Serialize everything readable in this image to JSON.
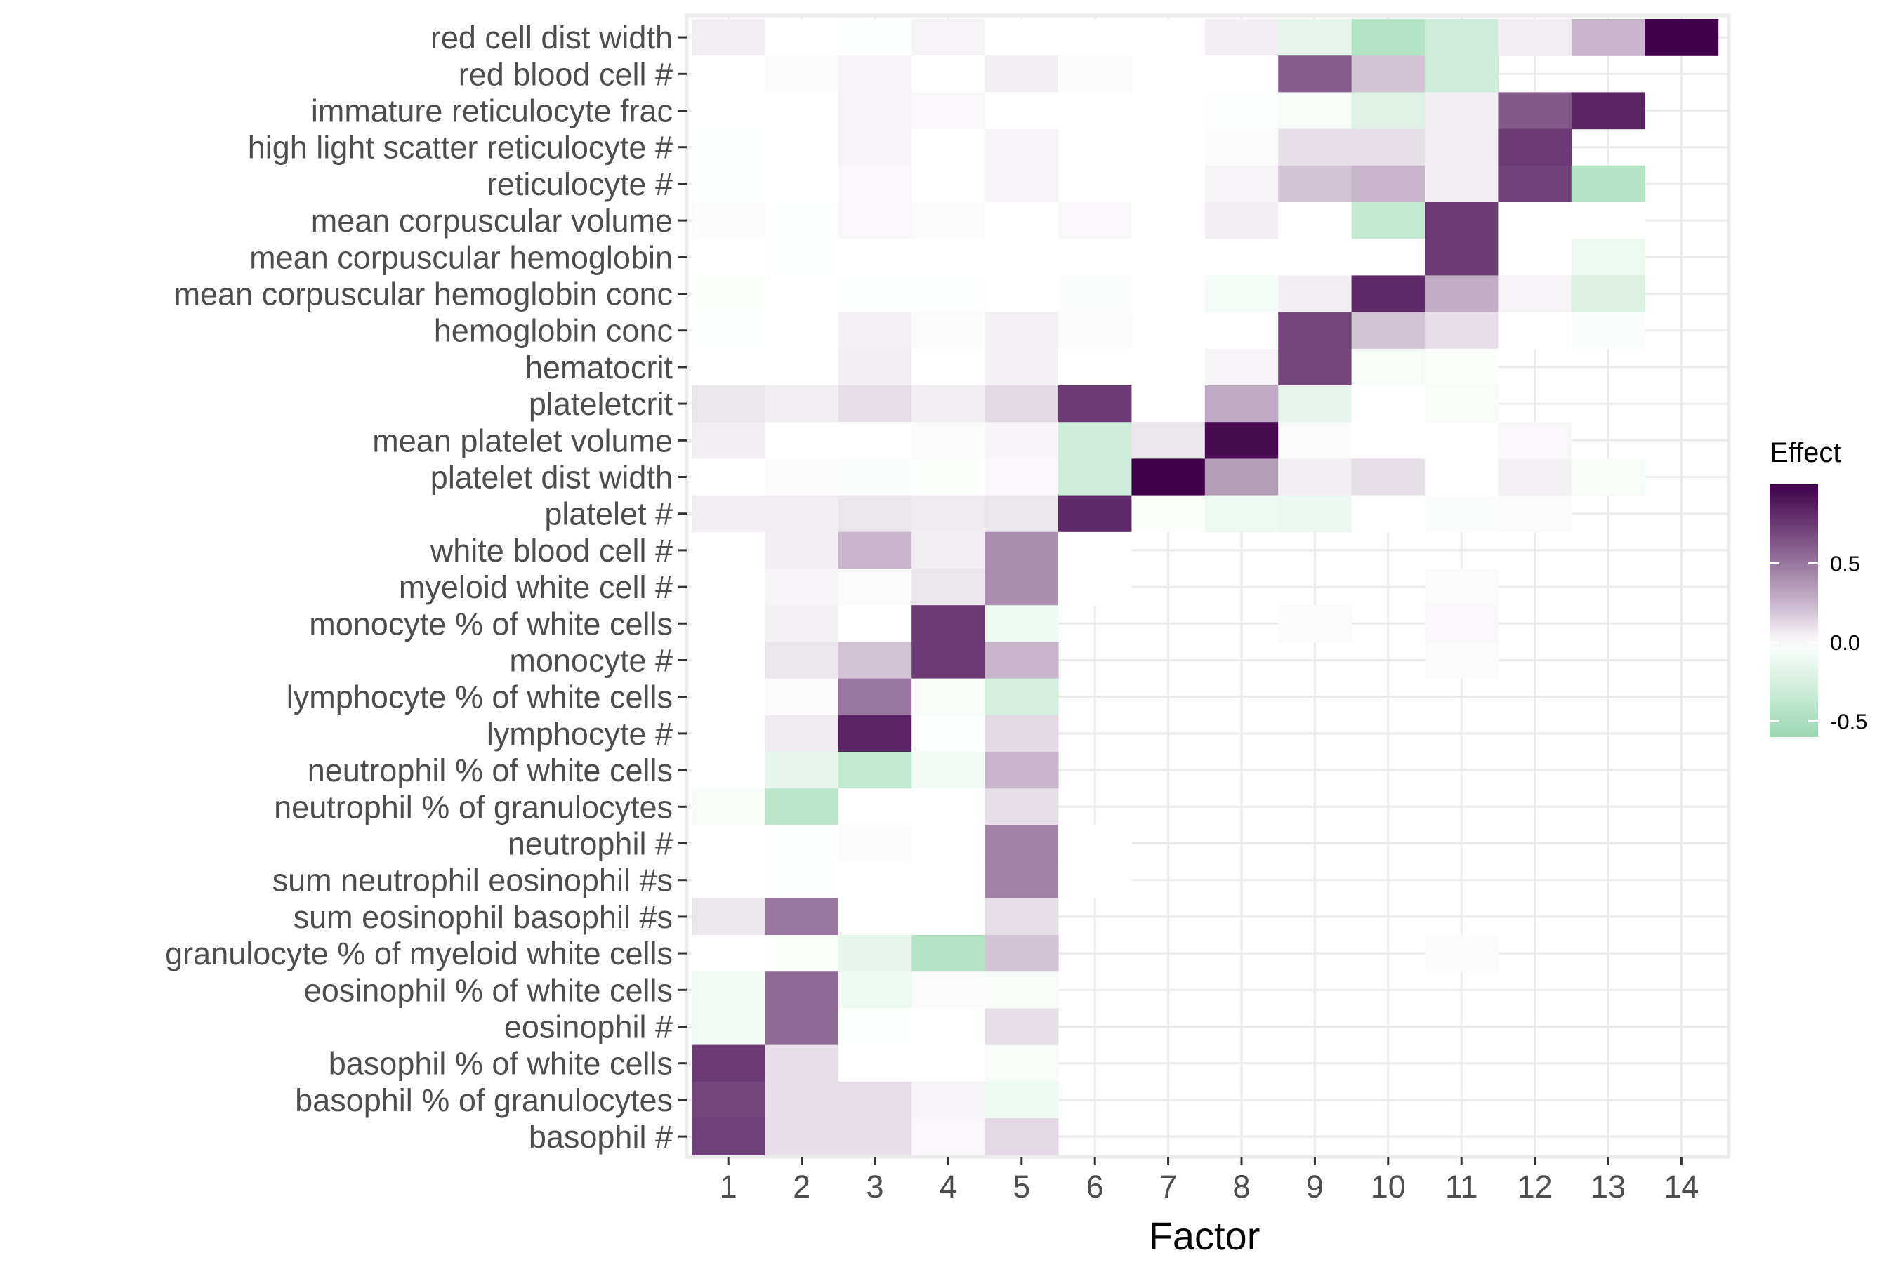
{
  "chart_data": {
    "type": "heatmap",
    "xlabel": "Factor",
    "ylabel": "",
    "x": [
      1,
      2,
      3,
      4,
      5,
      6,
      7,
      8,
      9,
      10,
      11,
      12,
      13,
      14
    ],
    "y": [
      "red cell dist width",
      "red blood cell #",
      "immature reticulocyte frac",
      "high light scatter reticulocyte #",
      "reticulocyte #",
      "mean corpuscular volume",
      "mean corpuscular hemoglobin",
      "mean corpuscular hemoglobin conc",
      "hemoglobin conc",
      "hematocrit",
      "plateletcrit",
      "mean platelet volume",
      "platelet dist width",
      "platelet #",
      "white blood cell #",
      "myeloid white cell #",
      "monocyte % of white cells",
      "monocyte #",
      "lymphocyte % of white cells",
      "lymphocyte #",
      "neutrophil % of white cells",
      "neutrophil % of granulocytes",
      "neutrophil #",
      "sum neutrophil eosinophil #s",
      "sum eosinophil basophil #s",
      "granulocyte % of myeloid white cells",
      "eosinophil % of white cells",
      "eosinophil #",
      "basophil % of white cells",
      "basophil % of granulocytes",
      "basophil #"
    ],
    "values": [
      [
        0.05,
        0,
        -0.01,
        0.03,
        0,
        0,
        0,
        0.05,
        -0.15,
        -0.45,
        -0.3,
        0.05,
        0.25,
        1.0
      ],
      [
        0,
        0.01,
        0.03,
        0,
        0.05,
        0.01,
        0,
        0,
        0.6,
        0.2,
        -0.3,
        null,
        null,
        null
      ],
      [
        0,
        0,
        0.03,
        0.02,
        0,
        0,
        0,
        -0.01,
        -0.05,
        -0.2,
        0.05,
        0.62,
        0.85,
        null
      ],
      [
        -0.01,
        0,
        0.03,
        0,
        0.03,
        0,
        0,
        0.01,
        0.1,
        0.1,
        0.05,
        0.75,
        null,
        null
      ],
      [
        -0.01,
        0,
        0.02,
        0,
        0.03,
        0,
        0,
        0.03,
        0.2,
        0.25,
        0.05,
        0.72,
        -0.45,
        null
      ],
      [
        0.01,
        -0.01,
        0.02,
        0.01,
        0,
        0.02,
        0,
        0.05,
        0,
        -0.35,
        0.75,
        0,
        0,
        null
      ],
      [
        0,
        -0.01,
        0,
        0,
        0,
        0,
        0,
        0,
        0,
        0,
        0.75,
        0,
        -0.1,
        null
      ],
      [
        -0.02,
        0,
        -0.01,
        -0.01,
        0,
        -0.03,
        0,
        -0.07,
        0.05,
        0.82,
        0.28,
        0.03,
        -0.22,
        null
      ],
      [
        -0.01,
        0,
        0.04,
        0.01,
        0.04,
        0.01,
        0,
        0,
        0.7,
        0.2,
        0.1,
        0,
        -0.03,
        null
      ],
      [
        0,
        0,
        0.05,
        0,
        0.04,
        0,
        0,
        0.03,
        0.7,
        -0.05,
        -0.02,
        null,
        null,
        null
      ],
      [
        0.08,
        0.05,
        0.1,
        0.05,
        0.12,
        0.75,
        0,
        0.3,
        -0.15,
        0,
        -0.05,
        null,
        null,
        null
      ],
      [
        0.05,
        0,
        0,
        0.01,
        0.03,
        -0.3,
        0.08,
        0.95,
        0.01,
        0,
        0,
        0.02,
        null,
        null
      ],
      [
        0,
        0.01,
        -0.03,
        -0.02,
        0.02,
        -0.3,
        1.0,
        0.35,
        0.05,
        0.1,
        0,
        0.04,
        -0.05,
        null
      ],
      [
        0.05,
        0.05,
        0.08,
        0.06,
        0.08,
        0.82,
        -0.02,
        -0.1,
        -0.12,
        0,
        -0.03,
        0.01,
        null,
        null
      ],
      [
        0,
        0.05,
        0.25,
        0.05,
        0.4,
        0,
        null,
        null,
        null,
        null,
        null,
        null,
        null,
        null
      ],
      [
        0,
        0.03,
        0.01,
        0.08,
        0.4,
        0,
        null,
        null,
        null,
        null,
        0.01,
        null,
        null,
        null
      ],
      [
        0,
        0.04,
        0,
        0.75,
        -0.1,
        null,
        null,
        null,
        0.01,
        null,
        0.02,
        null,
        null,
        null
      ],
      [
        0,
        0.08,
        0.2,
        0.75,
        0.25,
        null,
        null,
        null,
        null,
        null,
        0.01,
        null,
        null,
        null
      ],
      [
        0,
        0.01,
        0.5,
        -0.05,
        -0.25,
        null,
        null,
        null,
        null,
        null,
        null,
        null,
        null,
        null
      ],
      [
        0,
        0.06,
        0.85,
        -0.01,
        0.12,
        null,
        null,
        null,
        null,
        null,
        null,
        null,
        null,
        null
      ],
      [
        0,
        -0.15,
        -0.35,
        -0.08,
        0.25,
        null,
        null,
        null,
        null,
        null,
        null,
        null,
        null,
        null
      ],
      [
        -0.05,
        -0.4,
        0,
        0,
        0.1,
        null,
        null,
        null,
        null,
        null,
        null,
        null,
        null,
        null
      ],
      [
        0,
        -0.01,
        0.01,
        0,
        0.45,
        0,
        null,
        null,
        null,
        null,
        null,
        null,
        null,
        null
      ],
      [
        0,
        -0.01,
        0,
        0,
        0.45,
        0,
        null,
        null,
        null,
        null,
        null,
        null,
        null,
        null
      ],
      [
        0.08,
        0.5,
        0,
        0,
        0.1,
        null,
        null,
        null,
        null,
        null,
        null,
        null,
        null,
        null
      ],
      [
        0,
        -0.02,
        -0.15,
        -0.45,
        0.2,
        null,
        null,
        null,
        null,
        null,
        0.01,
        null,
        null,
        null
      ],
      [
        -0.08,
        0.55,
        -0.1,
        0.01,
        -0.05,
        null,
        null,
        null,
        null,
        null,
        null,
        null,
        null,
        null
      ],
      [
        -0.08,
        0.55,
        -0.01,
        0,
        0.1,
        null,
        null,
        null,
        null,
        null,
        null,
        null,
        null,
        null
      ],
      [
        0.75,
        0.1,
        0,
        0,
        -0.05,
        null,
        null,
        null,
        null,
        null,
        null,
        null,
        null,
        null
      ],
      [
        0.7,
        0.1,
        0.1,
        0.03,
        -0.1,
        null,
        null,
        null,
        null,
        null,
        null,
        null,
        null,
        null
      ],
      [
        0.72,
        0.1,
        0.1,
        0.02,
        0.12,
        null,
        null,
        null,
        null,
        null,
        null,
        null,
        null,
        null
      ]
    ],
    "legend": {
      "title": "Effect",
      "position": "right",
      "ticks": [
        0.5,
        0.0,
        -0.5
      ],
      "tick_labels": [
        "0.5",
        "0.0",
        "-0.5"
      ],
      "range": [
        -0.6,
        1.0
      ]
    },
    "colors": {
      "negative": "#9ad9b2",
      "zero": "#ffffff",
      "positive": "#40004b",
      "panel_background": "#ffffff",
      "panel_border": "#ebebeb"
    },
    "grid": true
  }
}
